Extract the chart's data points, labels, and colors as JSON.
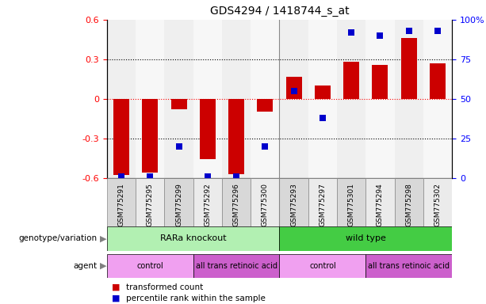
{
  "title": "GDS4294 / 1418744_s_at",
  "samples": [
    "GSM775291",
    "GSM775295",
    "GSM775299",
    "GSM775292",
    "GSM775296",
    "GSM775300",
    "GSM775293",
    "GSM775297",
    "GSM775301",
    "GSM775294",
    "GSM775298",
    "GSM775302"
  ],
  "bar_values": [
    -0.58,
    -0.56,
    -0.08,
    -0.46,
    -0.57,
    -0.1,
    0.17,
    0.1,
    0.28,
    0.26,
    0.46,
    0.27
  ],
  "percentile_values": [
    1,
    1,
    20,
    1,
    1,
    20,
    55,
    38,
    92,
    90,
    93,
    93
  ],
  "bar_color": "#cc0000",
  "dot_color": "#0000cc",
  "ylim_left": [
    -0.6,
    0.6
  ],
  "ylim_right": [
    0,
    100
  ],
  "yticks_left": [
    -0.6,
    -0.3,
    0.0,
    0.3,
    0.6
  ],
  "ytick_labels_left": [
    "-0.6",
    "-0.3",
    "0",
    "0.3",
    "0.6"
  ],
  "yticks_right": [
    0,
    25,
    50,
    75,
    100
  ],
  "ytick_labels_right": [
    "0",
    "25",
    "50",
    "75",
    "100%"
  ],
  "groups": [
    {
      "label": "RARa knockout",
      "start": 0,
      "end": 6,
      "color": "#b2f0b2"
    },
    {
      "label": "wild type",
      "start": 6,
      "end": 12,
      "color": "#44cc44"
    }
  ],
  "agents": [
    {
      "label": "control",
      "start": 0,
      "end": 3,
      "color": "#f0a0f0"
    },
    {
      "label": "all trans retinoic acid",
      "start": 3,
      "end": 6,
      "color": "#cc60cc"
    },
    {
      "label": "control",
      "start": 6,
      "end": 9,
      "color": "#f0a0f0"
    },
    {
      "label": "all trans retinoic acid",
      "start": 9,
      "end": 12,
      "color": "#cc60cc"
    }
  ],
  "legend": [
    {
      "label": "transformed count",
      "color": "#cc0000"
    },
    {
      "label": "percentile rank within the sample",
      "color": "#0000cc"
    }
  ],
  "bar_width": 0.55,
  "dot_size": 30,
  "col_bg_even": "#d8d8d8",
  "col_bg_odd": "#ebebeb"
}
